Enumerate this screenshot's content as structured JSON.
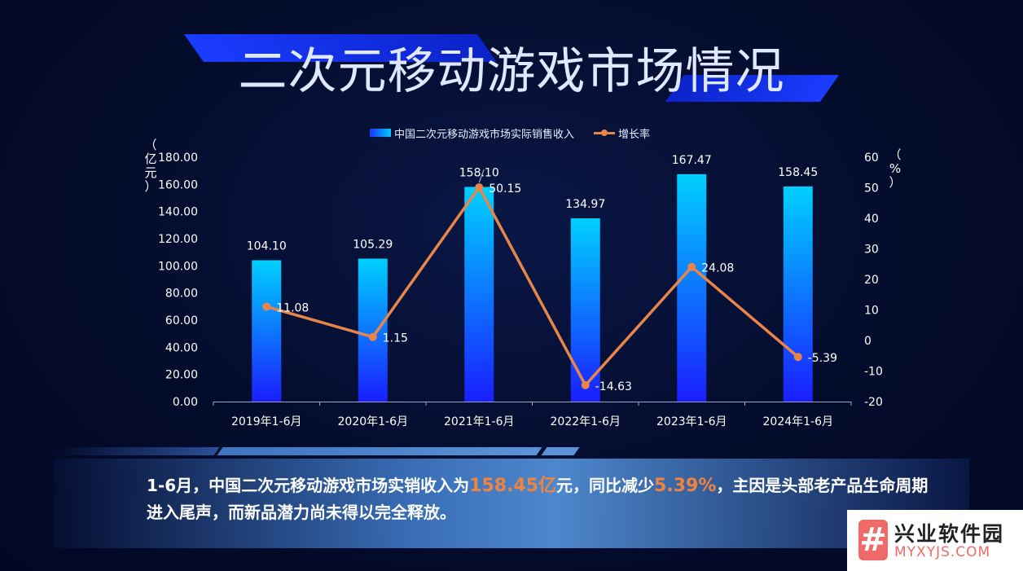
{
  "title": "二次元移动游戏市场情况",
  "legend": {
    "bar_label": "中国二次元移动游戏市场实际销售收入",
    "line_label": "增长率"
  },
  "left_axis_unit": [
    "（",
    "亿",
    "元",
    "）"
  ],
  "right_axis_unit": [
    "（",
    "%",
    "）"
  ],
  "colors": {
    "bar_top": "#00d0ff",
    "bar_bottom": "#1a1eff",
    "line": "#e8864a",
    "highlight": "#f0843e"
  },
  "chart_data": {
    "type": "bar",
    "categories": [
      "2019年1-6月",
      "2020年1-6月",
      "2021年1-6月",
      "2022年1-6月",
      "2023年1-6月",
      "2024年1-6月"
    ],
    "series": [
      {
        "name": "中国二次元移动游戏市场实际销售收入",
        "type": "bar",
        "axis": "left",
        "values": [
          104.1,
          105.29,
          158.1,
          134.97,
          167.47,
          158.45
        ],
        "labels": [
          "104.10",
          "105.29",
          "158.10",
          "134.97",
          "167.47",
          "158.45"
        ]
      },
      {
        "name": "增长率",
        "type": "line",
        "axis": "right",
        "values": [
          11.08,
          1.15,
          50.15,
          -14.63,
          24.08,
          -5.39
        ],
        "labels": [
          "11.08",
          "1.15",
          "50.15",
          "-14.63",
          "24.08",
          "-5.39"
        ]
      }
    ],
    "left_axis": {
      "ylim": [
        0,
        180
      ],
      "ticks": [
        "0.00",
        "20.00",
        "40.00",
        "60.00",
        "80.00",
        "100.00",
        "120.00",
        "140.00",
        "160.00",
        "180.00"
      ]
    },
    "right_axis": {
      "ylim": [
        -20,
        60
      ],
      "ticks": [
        "-20",
        "-10",
        "0",
        "10",
        "20",
        "30",
        "40",
        "50",
        "60"
      ]
    },
    "grid": false,
    "legend_position": "top"
  },
  "summary": {
    "part1": "1-6月，中国二次元移动游戏市场实销收入为",
    "highlight1": "158.45亿",
    "part2": "元，同比减少",
    "highlight2": "5.39%",
    "part3": "，主因是头部老产品生命周期进入尾声，而新品潜力尚未得以完全释放。"
  },
  "watermark": {
    "icon_glyph": "#",
    "name": "兴业软件园",
    "url": "MYXYJS.COM"
  }
}
